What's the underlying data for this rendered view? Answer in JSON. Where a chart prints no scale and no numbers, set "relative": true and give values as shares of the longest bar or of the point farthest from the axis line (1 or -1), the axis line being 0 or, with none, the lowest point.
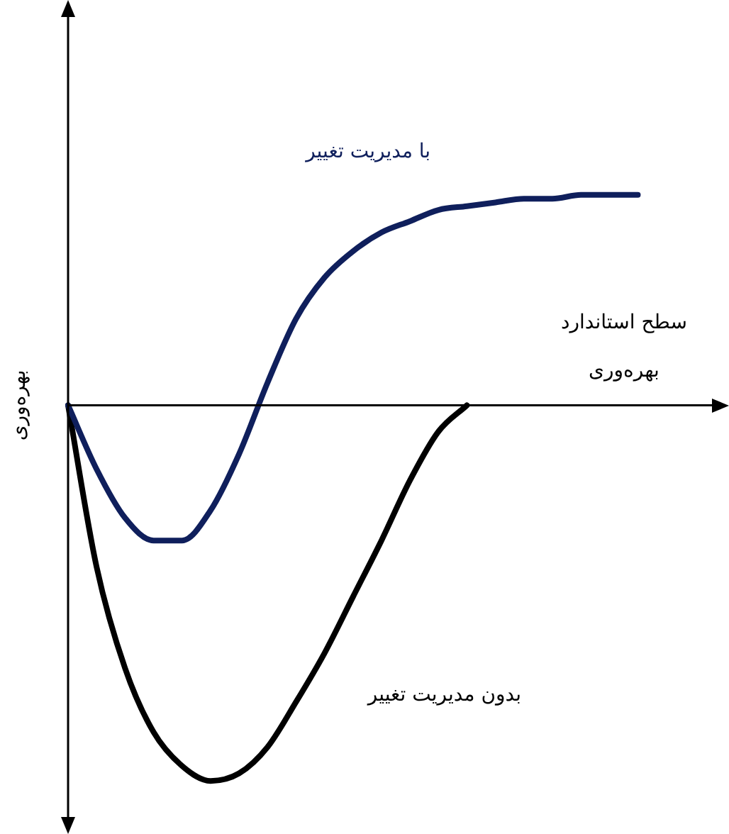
{
  "chart_data": {
    "type": "line",
    "relative": true,
    "ylabel": "بهره‌وری",
    "annotations": [
      "سطح استاندارد\nبهره‌وری"
    ],
    "legend": false,
    "marker": "none",
    "line_style": "solid",
    "categories": [
      null,
      null,
      null,
      null,
      null,
      null,
      null,
      null,
      null,
      null,
      null,
      null,
      null,
      null,
      null,
      null,
      null,
      null,
      null,
      null,
      null,
      null,
      null,
      null
    ],
    "series": [
      {
        "name": "با مدیریت تغییر",
        "color": "#0f1f5c",
        "values": [
          0,
          -0.17,
          -0.3,
          -0.36,
          -0.36,
          -0.28,
          -0.13,
          0.06,
          0.23,
          0.34,
          0.41,
          0.46,
          0.49,
          0.52,
          0.53,
          0.54,
          0.55,
          0.55,
          0.56,
          0.56,
          0.56,
          null,
          null,
          null
        ]
      },
      {
        "name": "بدون مدیریت تغییر",
        "color": "#000000",
        "values": [
          0,
          -0.43,
          -0.7,
          -0.87,
          -0.96,
          -1,
          -0.98,
          -0.91,
          -0.79,
          -0.66,
          -0.51,
          -0.36,
          -0.2,
          -0.07,
          0,
          null,
          null,
          null,
          null,
          null,
          null,
          null,
          null,
          null
        ]
      }
    ]
  }
}
